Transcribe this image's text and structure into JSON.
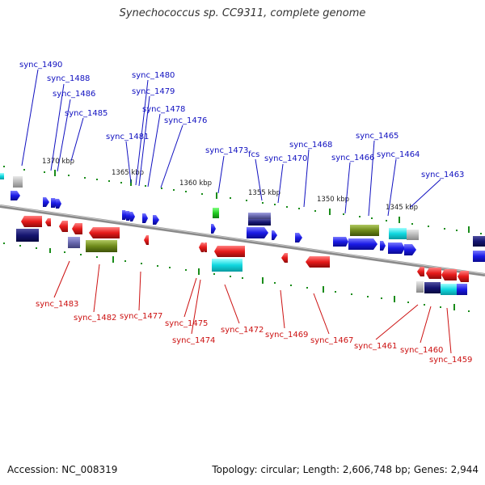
{
  "title": "Synechococcus sp. CC9311, complete genome",
  "accession": "Accession: NC_008319",
  "topology": "Topology: circular; Length: 2,606,748 bp; Genes: 2,944",
  "colors": {
    "backbone": "#8a8a8a",
    "tick": "#1a8c1a",
    "forward_label": "#1010c0",
    "reverse_label": "#cc1010",
    "forward_gene": "#1a1ae6",
    "reverse_gene": "#e61a1a",
    "trna": "#b8b8b8",
    "olive": "#6e8a1a",
    "navy": "#151570",
    "slate": "#6a6ab0",
    "cyan": "#10d8e0",
    "green": "#22cc22"
  },
  "scale_labels": [
    "1370 kbp",
    "1365 kbp",
    "1360 kbp",
    "1355 kbp",
    "1350 kbp",
    "1345 kbp"
  ],
  "forward_labels": [
    "sync_1490",
    "sync_1488",
    "sync_1486",
    "sync_1485",
    "sync_1480",
    "sync_1479",
    "sync_1478",
    "sync_1481",
    "sync_1476",
    "sync_1473",
    "fcs",
    "sync_1470",
    "sync_1468",
    "sync_1466",
    "sync_1465",
    "sync_1464",
    "sync_1463"
  ],
  "reverse_labels": [
    "sync_1483",
    "sync_1482",
    "sync_1477",
    "sync_1475",
    "sync_1474",
    "sync_1472",
    "sync_1469",
    "sync_1467",
    "sync_1461",
    "sync_1460",
    "sync_1459"
  ]
}
